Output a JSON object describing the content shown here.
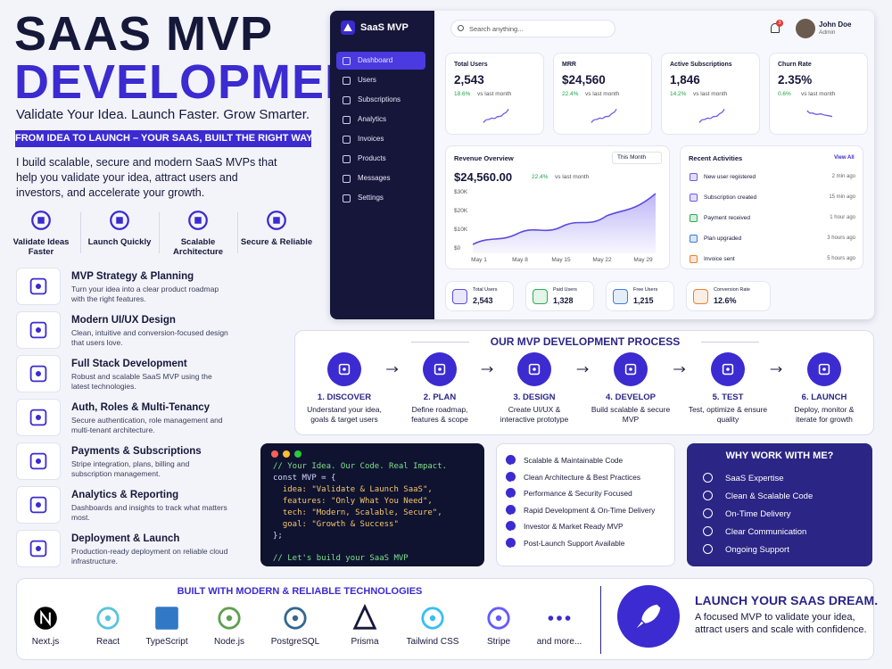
{
  "hero": {
    "title1": "SAAS MVP",
    "title2": "DEVELOPMENT",
    "tagline": "Validate Your Idea. Launch Faster. Grow Smarter.",
    "banner": "FROM IDEA TO LAUNCH – YOUR SAAS, BUILT THE RIGHT WAY.",
    "intro": "I build scalable, secure and modern SaaS MVPs that help you validate your idea, attract users and investors, and accelerate your growth."
  },
  "benefits": [
    "Validate Ideas Faster",
    "Launch Quickly",
    "Scalable Architecture",
    "Secure & Reliable"
  ],
  "services": [
    {
      "title": "MVP Strategy & Planning",
      "desc": "Turn your idea into a clear product roadmap with the right features."
    },
    {
      "title": "Modern UI/UX Design",
      "desc": "Clean, intuitive and conversion-focused design that users love."
    },
    {
      "title": "Full Stack Development",
      "desc": "Robust and scalable SaaS MVP using the latest technologies."
    },
    {
      "title": "Auth, Roles & Multi-Tenancy",
      "desc": "Secure authentication, role management and multi-tenant architecture."
    },
    {
      "title": "Payments & Subscriptions",
      "desc": "Stripe integration, plans, billing and subscription management."
    },
    {
      "title": "Analytics & Reporting",
      "desc": "Dashboards and insights to track what matters most."
    },
    {
      "title": "Deployment & Launch",
      "desc": "Production-ready deployment on reliable cloud infrastructure."
    }
  ],
  "dashboard": {
    "brand": "SaaS MVP",
    "nav": [
      "Dashboard",
      "Users",
      "Subscriptions",
      "Analytics",
      "Invoices",
      "Products",
      "Messages",
      "Settings"
    ],
    "search": "Search anything...",
    "notifications": "3",
    "user": {
      "name": "John Doe",
      "role": "Admin"
    },
    "kpis": [
      {
        "label": "Total Users",
        "value": "2,543",
        "change": "18.6%",
        "note": "vs last month"
      },
      {
        "label": "MRR",
        "value": "$24,560",
        "change": "22.4%",
        "note": "vs last month"
      },
      {
        "label": "Active Subscriptions",
        "value": "1,846",
        "change": "14.2%",
        "note": "vs last month"
      },
      {
        "label": "Churn Rate",
        "value": "2.35%",
        "change": "0.6%",
        "note": "vs last month"
      }
    ],
    "revenue": {
      "title": "Revenue Overview",
      "period": "This Month",
      "value": "$24,560.00",
      "change": "22.4%",
      "note": "vs last month",
      "yticks": [
        "$30K",
        "$20K",
        "$10K",
        "$0"
      ],
      "xticks": [
        "May 1",
        "May 8",
        "May 15",
        "May 22",
        "May 29"
      ]
    },
    "activities": {
      "title": "Recent Activities",
      "link": "View All",
      "items": [
        {
          "text": "New user registered",
          "time": "2 min ago"
        },
        {
          "text": "Subscription created",
          "time": "15 min ago"
        },
        {
          "text": "Payment received",
          "time": "1 hour ago"
        },
        {
          "text": "Plan upgraded",
          "time": "3 hours ago"
        },
        {
          "text": "Invoice sent",
          "time": "5 hours ago"
        }
      ]
    },
    "stats": [
      {
        "label": "Total Users",
        "value": "2,543"
      },
      {
        "label": "Paid Users",
        "value": "1,328"
      },
      {
        "label": "Free Users",
        "value": "1,215"
      },
      {
        "label": "Conversion Rate",
        "value": "12.6%"
      }
    ]
  },
  "process": {
    "title": "OUR MVP DEVELOPMENT PROCESS",
    "steps": [
      {
        "title": "1. DISCOVER",
        "desc": "Understand your idea, goals & target users"
      },
      {
        "title": "2. PLAN",
        "desc": "Define roadmap, features & scope"
      },
      {
        "title": "3. DESIGN",
        "desc": "Create UI/UX & interactive prototype"
      },
      {
        "title": "4. DEVELOP",
        "desc": "Build scalable & secure MVP"
      },
      {
        "title": "5. TEST",
        "desc": "Test, optimize & ensure quality"
      },
      {
        "title": "6. LAUNCH",
        "desc": "Deploy, monitor & iterate for growth"
      }
    ]
  },
  "code": {
    "lines": [
      "// Your Idea. Our Code. Real Impact.",
      "const MVP = {",
      "  idea: \"Validate & Launch SaaS\",",
      "  features: \"Only What You Need\",",
      "  tech: \"Modern, Scalable, Secure\",",
      "  goal: \"Growth & Success\"",
      "};",
      "// Let's build your SaaS MVP"
    ]
  },
  "features": [
    "Scalable & Maintainable Code",
    "Clean Architecture & Best Practices",
    "Performance & Security Focused",
    "Rapid Development & On-Time Delivery",
    "Investor & Market Ready MVP",
    "Post-Launch Support Available"
  ],
  "why": {
    "title": "WHY WORK WITH ME?",
    "items": [
      "SaaS Expertise",
      "Clean & Scalable Code",
      "On-Time Delivery",
      "Clear Communication",
      "Ongoing Support"
    ]
  },
  "tech": {
    "title": "BUILT WITH MODERN & RELIABLE TECHNOLOGIES",
    "items": [
      "Next.js",
      "React",
      "TypeScript",
      "Node.js",
      "PostgreSQL",
      "Prisma",
      "Tailwind CSS",
      "Stripe",
      "and more..."
    ]
  },
  "cta": {
    "title": "LAUNCH YOUR SAAS DREAM.",
    "text": "A focused MVP to validate your idea, attract users and scale with confidence."
  }
}
